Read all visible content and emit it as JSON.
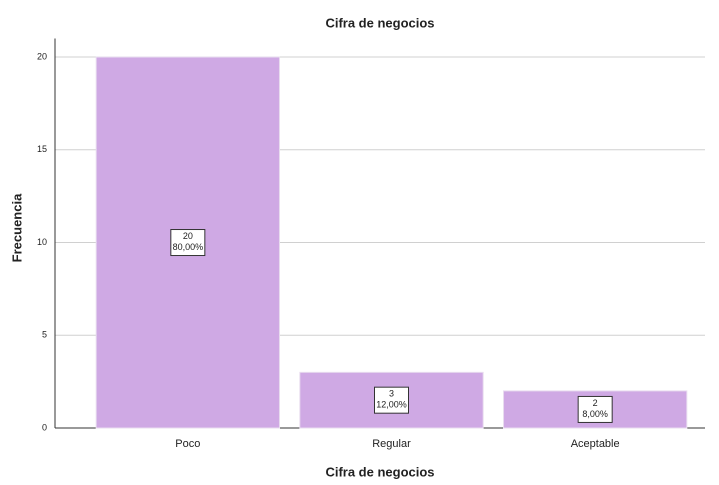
{
  "chart_data": {
    "type": "bar",
    "title": "Cifra de negocios",
    "x_label": "Cifra de negocios",
    "y_label": "Frecuencia",
    "categories": [
      "Poco",
      "Regular",
      "Aceptable"
    ],
    "values": [
      20,
      3,
      2
    ],
    "color": "#cfa9e4",
    "percent_values": [
      80,
      12,
      8
    ],
    "percent_value_labels": [
      "80,00%",
      "12,00%",
      "8,00%"
    ],
    "ylim": [
      0,
      21
    ],
    "yticks": [
      0,
      5,
      10,
      15,
      20
    ],
    "grid": true
  }
}
